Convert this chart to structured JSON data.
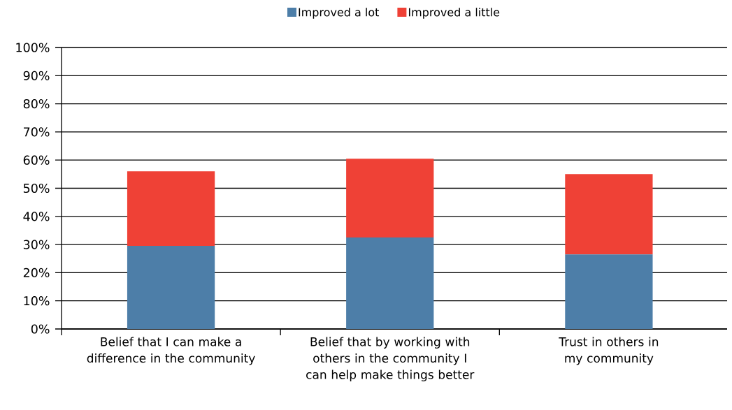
{
  "chart_data": {
    "type": "bar",
    "stacked": true,
    "categories": [
      "Belief that I can make a difference in the community",
      "Belief that by working with others in the community I can help make things better",
      "Trust in others in my community"
    ],
    "series": [
      {
        "name": "Improved a lot",
        "color": "#4d7ea8",
        "values": [
          29.5,
          32.5,
          26.5
        ]
      },
      {
        "name": "Improved a little",
        "color": "#ef4136",
        "values": [
          26.5,
          28,
          28.5
        ]
      }
    ],
    "ylim": [
      0,
      100
    ],
    "yticks": [
      {
        "value": 0,
        "label": "0%"
      },
      {
        "value": 10,
        "label": "10%"
      },
      {
        "value": 20,
        "label": "20%"
      },
      {
        "value": 30,
        "label": "30%"
      },
      {
        "value": 40,
        "label": "40%"
      },
      {
        "value": 50,
        "label": "50%"
      },
      {
        "value": 60,
        "label": "60%"
      },
      {
        "value": 70,
        "label": "70%"
      },
      {
        "value": 80,
        "label": "80%"
      },
      {
        "value": 90,
        "label": "90%"
      },
      {
        "value": 100,
        "label": "100%"
      }
    ],
    "grid": "y",
    "legend": "top"
  }
}
